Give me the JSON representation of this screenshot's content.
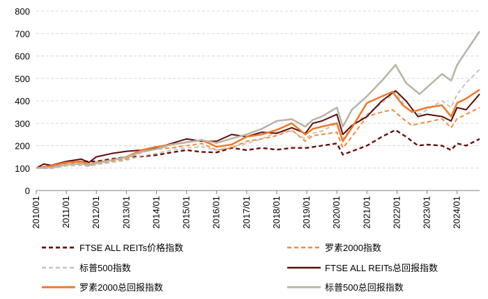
{
  "chart_data": {
    "type": "line",
    "title": "",
    "xlabel": "",
    "ylabel": "",
    "ylim": [
      0,
      800
    ],
    "yticks": [
      "0",
      "100",
      "200",
      "300",
      "400",
      "500",
      "600",
      "700",
      "800"
    ],
    "xticks": [
      "2010/01",
      "2011/01",
      "2012/01",
      "2013/01",
      "2014/01",
      "2015/01",
      "2016/01",
      "2017/01",
      "2018/01",
      "2019/01",
      "2020/01",
      "2021/01",
      "2022/01",
      "2023/01",
      "2024/01"
    ],
    "grid": true,
    "legend_position": "bottom",
    "x_start": 2010.0,
    "x_end": 2024.75,
    "series": [
      {
        "name": "FTSE ALL REITs价格指数",
        "color": "#6b0d0d",
        "dash": "dashed",
        "width": 2.4,
        "points": [
          [
            2010.0,
            100
          ],
          [
            2010.5,
            100
          ],
          [
            2011.0,
            125
          ],
          [
            2011.5,
            130
          ],
          [
            2012.0,
            130
          ],
          [
            2012.5,
            140
          ],
          [
            2013.0,
            150
          ],
          [
            2013.5,
            152
          ],
          [
            2014.0,
            158
          ],
          [
            2014.5,
            170
          ],
          [
            2015.0,
            180
          ],
          [
            2015.5,
            172
          ],
          [
            2016.0,
            170
          ],
          [
            2016.5,
            190
          ],
          [
            2017.0,
            180
          ],
          [
            2017.5,
            190
          ],
          [
            2018.0,
            182
          ],
          [
            2018.5,
            190
          ],
          [
            2019.0,
            190
          ],
          [
            2019.5,
            200
          ],
          [
            2020.0,
            210
          ],
          [
            2020.2,
            160
          ],
          [
            2020.5,
            175
          ],
          [
            2021.0,
            200
          ],
          [
            2021.5,
            240
          ],
          [
            2021.95,
            270
          ],
          [
            2022.3,
            240
          ],
          [
            2022.7,
            200
          ],
          [
            2023.0,
            205
          ],
          [
            2023.5,
            200
          ],
          [
            2023.8,
            180
          ],
          [
            2024.0,
            210
          ],
          [
            2024.3,
            200
          ],
          [
            2024.75,
            230
          ]
        ]
      },
      {
        "name": "罗素2000指数",
        "color": "#f08a3c",
        "dash": "dashed",
        "width": 2.0,
        "points": [
          [
            2010.0,
            100
          ],
          [
            2010.5,
            105
          ],
          [
            2011.0,
            120
          ],
          [
            2011.5,
            125
          ],
          [
            2011.75,
            110
          ],
          [
            2012.0,
            120
          ],
          [
            2012.5,
            130
          ],
          [
            2013.0,
            140
          ],
          [
            2013.5,
            170
          ],
          [
            2014.0,
            185
          ],
          [
            2014.5,
            190
          ],
          [
            2015.0,
            200
          ],
          [
            2015.5,
            210
          ],
          [
            2016.0,
            180
          ],
          [
            2016.5,
            190
          ],
          [
            2017.0,
            220
          ],
          [
            2017.5,
            230
          ],
          [
            2018.0,
            245
          ],
          [
            2018.5,
            270
          ],
          [
            2018.95,
            220
          ],
          [
            2019.2,
            245
          ],
          [
            2019.5,
            250
          ],
          [
            2020.0,
            260
          ],
          [
            2020.2,
            190
          ],
          [
            2020.5,
            240
          ],
          [
            2021.0,
            330
          ],
          [
            2021.5,
            350
          ],
          [
            2021.85,
            360
          ],
          [
            2022.2,
            320
          ],
          [
            2022.5,
            290
          ],
          [
            2022.75,
            300
          ],
          [
            2023.0,
            305
          ],
          [
            2023.5,
            320
          ],
          [
            2023.8,
            280
          ],
          [
            2024.0,
            320
          ],
          [
            2024.3,
            340
          ],
          [
            2024.75,
            370
          ]
        ]
      },
      {
        "name": "标普500指数",
        "color": "#c8c3b5",
        "dash": "dashed",
        "width": 2.0,
        "points": [
          [
            2010.0,
            100
          ],
          [
            2010.5,
            98
          ],
          [
            2011.0,
            110
          ],
          [
            2011.5,
            112
          ],
          [
            2011.75,
            108
          ],
          [
            2012.0,
            115
          ],
          [
            2012.5,
            125
          ],
          [
            2013.0,
            135
          ],
          [
            2013.5,
            155
          ],
          [
            2014.0,
            165
          ],
          [
            2014.5,
            180
          ],
          [
            2015.0,
            190
          ],
          [
            2015.5,
            195
          ],
          [
            2016.0,
            180
          ],
          [
            2016.5,
            195
          ],
          [
            2017.0,
            210
          ],
          [
            2017.5,
            230
          ],
          [
            2018.0,
            260
          ],
          [
            2018.5,
            265
          ],
          [
            2018.95,
            230
          ],
          [
            2019.2,
            255
          ],
          [
            2019.5,
            265
          ],
          [
            2020.0,
            300
          ],
          [
            2020.2,
            230
          ],
          [
            2020.5,
            290
          ],
          [
            2021.0,
            340
          ],
          [
            2021.5,
            390
          ],
          [
            2021.95,
            440
          ],
          [
            2022.3,
            370
          ],
          [
            2022.75,
            340
          ],
          [
            2023.0,
            360
          ],
          [
            2023.5,
            400
          ],
          [
            2023.8,
            370
          ],
          [
            2024.0,
            430
          ],
          [
            2024.3,
            480
          ],
          [
            2024.75,
            540
          ]
        ]
      },
      {
        "name": "FTSE ALL REITs总回报指数",
        "color": "#5c0a0a",
        "dash": "solid",
        "width": 2.0,
        "points": [
          [
            2010.0,
            100
          ],
          [
            2010.25,
            118
          ],
          [
            2010.5,
            112
          ],
          [
            2011.0,
            130
          ],
          [
            2011.5,
            140
          ],
          [
            2011.75,
            125
          ],
          [
            2012.0,
            150
          ],
          [
            2012.5,
            165
          ],
          [
            2013.0,
            175
          ],
          [
            2013.5,
            180
          ],
          [
            2014.0,
            190
          ],
          [
            2014.5,
            210
          ],
          [
            2015.0,
            230
          ],
          [
            2015.5,
            220
          ],
          [
            2016.0,
            220
          ],
          [
            2016.5,
            250
          ],
          [
            2017.0,
            240
          ],
          [
            2017.5,
            260
          ],
          [
            2018.0,
            255
          ],
          [
            2018.5,
            280
          ],
          [
            2018.95,
            255
          ],
          [
            2019.2,
            300
          ],
          [
            2019.5,
            310
          ],
          [
            2020.0,
            340
          ],
          [
            2020.2,
            250
          ],
          [
            2020.5,
            290
          ],
          [
            2021.0,
            330
          ],
          [
            2021.5,
            400
          ],
          [
            2021.95,
            445
          ],
          [
            2022.3,
            400
          ],
          [
            2022.7,
            330
          ],
          [
            2023.0,
            340
          ],
          [
            2023.5,
            330
          ],
          [
            2023.8,
            310
          ],
          [
            2024.0,
            370
          ],
          [
            2024.3,
            360
          ],
          [
            2024.75,
            430
          ]
        ]
      },
      {
        "name": "罗素2000总回报指数",
        "color": "#ee7a2a",
        "dash": "solid",
        "width": 2.6,
        "points": [
          [
            2010.0,
            100
          ],
          [
            2010.5,
            110
          ],
          [
            2011.0,
            125
          ],
          [
            2011.5,
            130
          ],
          [
            2011.75,
            115
          ],
          [
            2012.0,
            125
          ],
          [
            2012.5,
            135
          ],
          [
            2013.0,
            150
          ],
          [
            2013.5,
            180
          ],
          [
            2014.0,
            195
          ],
          [
            2014.5,
            205
          ],
          [
            2015.0,
            215
          ],
          [
            2015.5,
            225
          ],
          [
            2016.0,
            195
          ],
          [
            2016.5,
            205
          ],
          [
            2017.0,
            240
          ],
          [
            2017.5,
            250
          ],
          [
            2018.0,
            270
          ],
          [
            2018.5,
            300
          ],
          [
            2018.95,
            250
          ],
          [
            2019.2,
            275
          ],
          [
            2019.5,
            285
          ],
          [
            2020.0,
            300
          ],
          [
            2020.2,
            220
          ],
          [
            2020.5,
            280
          ],
          [
            2021.0,
            390
          ],
          [
            2021.5,
            420
          ],
          [
            2021.85,
            440
          ],
          [
            2022.2,
            380
          ],
          [
            2022.5,
            350
          ],
          [
            2022.75,
            360
          ],
          [
            2023.0,
            370
          ],
          [
            2023.5,
            380
          ],
          [
            2023.8,
            330
          ],
          [
            2024.0,
            390
          ],
          [
            2024.3,
            410
          ],
          [
            2024.75,
            450
          ]
        ]
      },
      {
        "name": "标普500总回报指数",
        "color": "#b9b5a6",
        "dash": "solid",
        "width": 2.6,
        "points": [
          [
            2010.0,
            100
          ],
          [
            2010.5,
            102
          ],
          [
            2011.0,
            115
          ],
          [
            2011.5,
            120
          ],
          [
            2011.75,
            112
          ],
          [
            2012.0,
            122
          ],
          [
            2012.5,
            135
          ],
          [
            2013.0,
            148
          ],
          [
            2013.5,
            172
          ],
          [
            2014.0,
            185
          ],
          [
            2014.5,
            205
          ],
          [
            2015.0,
            215
          ],
          [
            2015.5,
            225
          ],
          [
            2016.0,
            212
          ],
          [
            2016.5,
            232
          ],
          [
            2017.0,
            250
          ],
          [
            2017.5,
            275
          ],
          [
            2018.0,
            310
          ],
          [
            2018.5,
            318
          ],
          [
            2018.95,
            285
          ],
          [
            2019.2,
            315
          ],
          [
            2019.5,
            330
          ],
          [
            2020.0,
            370
          ],
          [
            2020.2,
            285
          ],
          [
            2020.5,
            360
          ],
          [
            2021.0,
            420
          ],
          [
            2021.5,
            490
          ],
          [
            2021.95,
            560
          ],
          [
            2022.3,
            480
          ],
          [
            2022.75,
            430
          ],
          [
            2023.0,
            460
          ],
          [
            2023.5,
            520
          ],
          [
            2023.8,
            490
          ],
          [
            2024.0,
            560
          ],
          [
            2024.3,
            620
          ],
          [
            2024.75,
            710
          ]
        ]
      }
    ]
  }
}
